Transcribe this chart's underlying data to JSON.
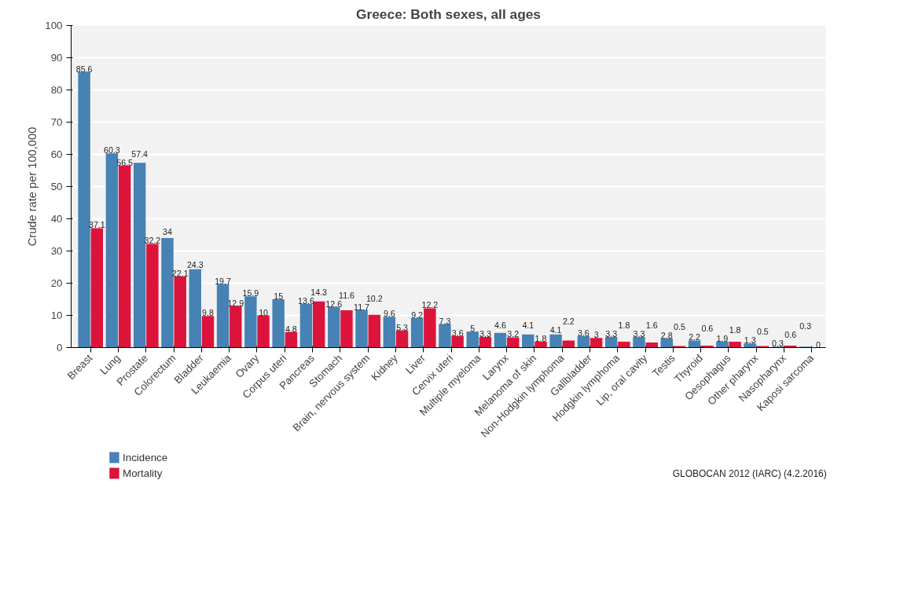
{
  "chart_data": {
    "type": "bar",
    "title": "Greece: Both sexes, all ages",
    "ylabel": "Crude rate per 100,000",
    "categories": [
      "Breast",
      "Lung",
      "Prostate",
      "Colorectum",
      "Bladder",
      "Leukaemia",
      "Ovary",
      "Corpus uteri",
      "Pancreas",
      "Stomach",
      "Brain, nervous system",
      "Kidney",
      "Liver",
      "Cervix uteri",
      "Multiple myeloma",
      "Larynx",
      "Melanoma of skin",
      "Non-Hodgkin lymphoma",
      "Gallbladder",
      "Hodgkin lymphoma",
      "Lip, oral cavity",
      "Testis",
      "Thyroid",
      "Oesophagus",
      "Other pharynx",
      "Nasopharynx",
      "Kaposi sarcoma"
    ],
    "series": [
      {
        "name": "Incidence",
        "color": "#4682b4",
        "values": [
          85.6,
          60.3,
          57.4,
          34,
          24.3,
          19.7,
          15.9,
          15,
          13.6,
          12.6,
          11.7,
          9.6,
          9.2,
          7.3,
          5,
          4.6,
          4.1,
          4.1,
          3.6,
          3.3,
          3.3,
          2.8,
          2.2,
          1.9,
          1.3,
          0.3,
          0.3
        ]
      },
      {
        "name": "Mortality",
        "color": "#dc143c",
        "values": [
          37.1,
          56.5,
          32.2,
          22.1,
          9.8,
          12.9,
          10,
          4.8,
          14.3,
          11.6,
          10.2,
          5.3,
          12.2,
          3.6,
          3.3,
          3.2,
          1.8,
          2.2,
          3,
          1.8,
          1.6,
          0.5,
          0.6,
          1.8,
          0.5,
          0.6,
          0
        ]
      }
    ],
    "ylim": [
      0,
      100
    ],
    "yticks": [
      0,
      10,
      20,
      30,
      40,
      50,
      60,
      70,
      80,
      90,
      100
    ],
    "grid": "y",
    "legend": "bottom left",
    "data_labels": true,
    "annotations": [
      "GLOBOCAN 2012 (IARC) (4.2.2016)"
    ]
  }
}
